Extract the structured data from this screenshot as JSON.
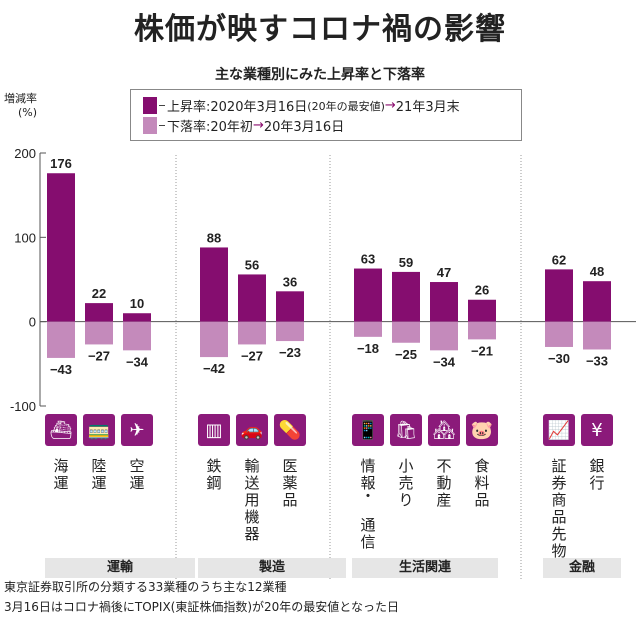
{
  "title": "株価が映すコロナ禍の影響",
  "subtitle": "主な業種別にみた上昇率と下落率",
  "y_axis_label": [
    "増減率",
    "(%)"
  ],
  "legend": {
    "rise": {
      "prefix": "上昇率:2020年3月16日",
      "note": "(20年の最安値)",
      "arrow": "→",
      "suffix": "21年3月末"
    },
    "fall": {
      "prefix": "下落率:20年初",
      "arrow": "→",
      "suffix": "20年3月16日"
    }
  },
  "colors": {
    "rise": "#850d6f",
    "fall": "#c48abb",
    "group_bg": "#e6e6e6"
  },
  "chart_data": {
    "type": "bar",
    "title": "主な業種別にみた上昇率と下落率",
    "ylabel": "増減率(%)",
    "ylim": [
      -100,
      200
    ],
    "yticks": [
      200,
      100,
      0,
      -100
    ],
    "categories": [
      "海運",
      "陸運",
      "空運",
      "鉄鋼",
      "輸送用機器",
      "医薬品",
      "情報・通信",
      "小売り",
      "不動産",
      "食料品",
      "証券商品先物",
      "銀行"
    ],
    "groups": [
      {
        "name": "運輸",
        "members": [
          "海運",
          "陸運",
          "空運"
        ]
      },
      {
        "name": "製造",
        "members": [
          "鉄鋼",
          "輸送用機器",
          "医薬品"
        ]
      },
      {
        "name": "生活関連",
        "members": [
          "情報・通信",
          "小売り",
          "不動産",
          "食料品"
        ]
      },
      {
        "name": "金融",
        "members": [
          "証券商品先物",
          "銀行"
        ]
      }
    ],
    "series": [
      {
        "name": "上昇率",
        "values": [
          176,
          22,
          10,
          88,
          56,
          36,
          63,
          59,
          47,
          26,
          62,
          48
        ]
      },
      {
        "name": "下落率",
        "values": [
          -43,
          -27,
          -34,
          -42,
          -27,
          -23,
          -18,
          -25,
          -34,
          -21,
          -30,
          -33
        ]
      }
    ]
  },
  "icons": [
    "ship-icon",
    "train-icon",
    "airplane-icon",
    "steel-icon",
    "car-icon",
    "medicine-icon",
    "smartphone-icon",
    "shopping-bag-icon",
    "building-icon",
    "food-icon",
    "chart-icon",
    "money-icon"
  ],
  "icon_glyphs": [
    "⛴",
    "🚃",
    "✈",
    "▥",
    "🚗",
    "💊",
    "📱",
    "🛍",
    "🏘",
    "🐷",
    "📈",
    "¥"
  ],
  "notes": [
    "東京証券取引所の分類する33業種のうち主な12業種",
    "3月16日はコロナ禍後にTOPIX(東証株価指数)が20年の最安値となった日"
  ]
}
